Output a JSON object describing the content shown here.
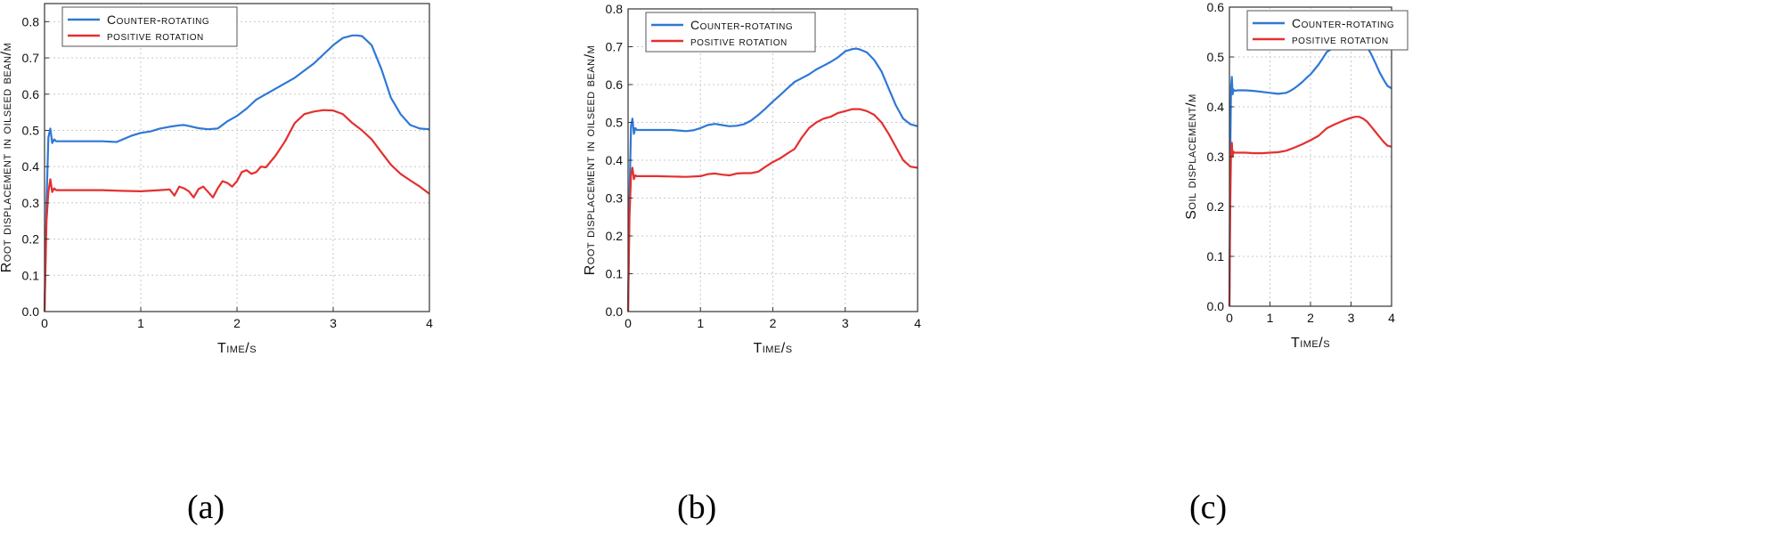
{
  "colors": {
    "counter": "#2f78d6",
    "positive": "#e3302f",
    "grid": "#c8c8c8",
    "axis": "#333333"
  },
  "chart_data": [
    {
      "id": "a",
      "type": "line",
      "caption": "(a)",
      "xlabel": "Time/s",
      "ylabel": "Root displacement in oilseed bean/m",
      "xlim": [
        0,
        4
      ],
      "ylim": [
        0,
        0.85
      ],
      "xticks": [
        "0",
        "1",
        "2",
        "3",
        "4"
      ],
      "yticks": [
        "0.0",
        "0.1",
        "0.2",
        "0.3",
        "0.4",
        "0.5",
        "0.6",
        "0.7",
        "0.8"
      ],
      "grid": true,
      "legend": "top-left",
      "series": [
        {
          "name": "Counter-rotating",
          "x": [
            0,
            0.02,
            0.04,
            0.06,
            0.08,
            0.1,
            0.12,
            0.2,
            0.4,
            0.6,
            0.75,
            0.9,
            1.0,
            1.1,
            1.2,
            1.3,
            1.4,
            1.45,
            1.5,
            1.6,
            1.7,
            1.8,
            1.9,
            2.0,
            2.1,
            2.2,
            2.3,
            2.4,
            2.5,
            2.6,
            2.7,
            2.8,
            2.9,
            3.0,
            3.1,
            3.2,
            3.25,
            3.3,
            3.4,
            3.5,
            3.6,
            3.7,
            3.8,
            3.9,
            4.0
          ],
          "values": [
            0,
            0.3,
            0.48,
            0.505,
            0.465,
            0.475,
            0.47,
            0.47,
            0.47,
            0.47,
            0.468,
            0.485,
            0.493,
            0.497,
            0.505,
            0.51,
            0.514,
            0.515,
            0.512,
            0.506,
            0.503,
            0.505,
            0.525,
            0.54,
            0.56,
            0.585,
            0.6,
            0.615,
            0.63,
            0.645,
            0.665,
            0.685,
            0.71,
            0.735,
            0.755,
            0.762,
            0.762,
            0.76,
            0.735,
            0.67,
            0.59,
            0.545,
            0.515,
            0.505,
            0.503
          ]
        },
        {
          "name": "positive rotation",
          "x": [
            0,
            0.02,
            0.04,
            0.06,
            0.08,
            0.1,
            0.12,
            0.2,
            0.4,
            0.6,
            0.8,
            1.0,
            1.2,
            1.3,
            1.35,
            1.4,
            1.45,
            1.5,
            1.55,
            1.6,
            1.65,
            1.7,
            1.75,
            1.8,
            1.85,
            1.9,
            1.95,
            2.0,
            2.05,
            2.1,
            2.15,
            2.2,
            2.25,
            2.3,
            2.4,
            2.5,
            2.6,
            2.7,
            2.8,
            2.9,
            3.0,
            3.1,
            3.2,
            3.3,
            3.4,
            3.5,
            3.6,
            3.7,
            3.8,
            3.9,
            4.0
          ],
          "values": [
            0,
            0.25,
            0.33,
            0.365,
            0.33,
            0.34,
            0.335,
            0.335,
            0.335,
            0.335,
            0.333,
            0.332,
            0.335,
            0.337,
            0.32,
            0.345,
            0.34,
            0.332,
            0.315,
            0.338,
            0.345,
            0.33,
            0.315,
            0.34,
            0.36,
            0.355,
            0.345,
            0.36,
            0.385,
            0.39,
            0.38,
            0.385,
            0.4,
            0.398,
            0.43,
            0.47,
            0.52,
            0.545,
            0.552,
            0.556,
            0.555,
            0.545,
            0.52,
            0.5,
            0.475,
            0.44,
            0.405,
            0.38,
            0.362,
            0.345,
            0.325
          ]
        }
      ]
    },
    {
      "id": "b",
      "type": "line",
      "caption": "(b)",
      "xlabel": "Time/s",
      "ylabel": "Root displacement in oilseed bean/m",
      "xlim": [
        0,
        4
      ],
      "ylim": [
        0,
        0.8
      ],
      "xticks": [
        "0",
        "1",
        "2",
        "3",
        "4"
      ],
      "yticks": [
        "0.0",
        "0.1",
        "0.2",
        "0.3",
        "0.4",
        "0.5",
        "0.6",
        "0.7",
        "0.8"
      ],
      "grid": true,
      "legend": "top-left",
      "series": [
        {
          "name": "Counter-rotating",
          "x": [
            0,
            0.02,
            0.04,
            0.06,
            0.08,
            0.1,
            0.12,
            0.2,
            0.4,
            0.6,
            0.8,
            0.9,
            1.0,
            1.1,
            1.2,
            1.3,
            1.4,
            1.5,
            1.6,
            1.7,
            1.8,
            1.9,
            2.0,
            2.1,
            2.2,
            2.3,
            2.4,
            2.5,
            2.6,
            2.7,
            2.8,
            2.9,
            3.0,
            3.1,
            3.15,
            3.2,
            3.3,
            3.4,
            3.5,
            3.6,
            3.7,
            3.8,
            3.9,
            4.0
          ],
          "values": [
            0,
            0.3,
            0.49,
            0.51,
            0.47,
            0.485,
            0.48,
            0.48,
            0.48,
            0.48,
            0.477,
            0.479,
            0.485,
            0.493,
            0.496,
            0.493,
            0.49,
            0.491,
            0.495,
            0.505,
            0.52,
            0.537,
            0.555,
            0.572,
            0.59,
            0.607,
            0.617,
            0.627,
            0.64,
            0.65,
            0.66,
            0.672,
            0.688,
            0.694,
            0.695,
            0.693,
            0.685,
            0.665,
            0.635,
            0.59,
            0.545,
            0.51,
            0.495,
            0.49
          ]
        },
        {
          "name": "positive rotation",
          "x": [
            0,
            0.02,
            0.04,
            0.06,
            0.08,
            0.1,
            0.12,
            0.2,
            0.4,
            0.6,
            0.8,
            1.0,
            1.1,
            1.2,
            1.3,
            1.4,
            1.5,
            1.6,
            1.7,
            1.8,
            1.9,
            2.0,
            2.1,
            2.2,
            2.3,
            2.4,
            2.5,
            2.6,
            2.7,
            2.8,
            2.9,
            3.0,
            3.1,
            3.2,
            3.3,
            3.4,
            3.5,
            3.6,
            3.7,
            3.8,
            3.9,
            4.0
          ],
          "values": [
            0,
            0.25,
            0.36,
            0.38,
            0.35,
            0.36,
            0.358,
            0.358,
            0.358,
            0.357,
            0.356,
            0.358,
            0.363,
            0.365,
            0.362,
            0.36,
            0.365,
            0.366,
            0.366,
            0.37,
            0.383,
            0.395,
            0.405,
            0.418,
            0.43,
            0.46,
            0.485,
            0.5,
            0.51,
            0.515,
            0.525,
            0.53,
            0.535,
            0.535,
            0.53,
            0.52,
            0.5,
            0.47,
            0.435,
            0.4,
            0.383,
            0.38
          ]
        }
      ]
    },
    {
      "id": "c",
      "type": "line",
      "caption": "(c)",
      "xlabel": "Time/s",
      "ylabel": "Soil displacement/m",
      "xlim": [
        0,
        4
      ],
      "ylim": [
        0,
        0.6
      ],
      "xticks": [
        "0",
        "1",
        "2",
        "3",
        "4"
      ],
      "yticks": [
        "0.0",
        "0.1",
        "0.2",
        "0.3",
        "0.4",
        "0.5",
        "0.6"
      ],
      "grid": true,
      "legend": "top-left",
      "series": [
        {
          "name": "Counter-rotating",
          "x": [
            0,
            0.02,
            0.04,
            0.06,
            0.08,
            0.1,
            0.12,
            0.2,
            0.4,
            0.6,
            0.8,
            1.0,
            1.2,
            1.4,
            1.5,
            1.6,
            1.7,
            1.8,
            1.9,
            2.0,
            2.1,
            2.2,
            2.3,
            2.4,
            2.5,
            2.6,
            2.7,
            2.8,
            2.9,
            3.0,
            3.1,
            3.2,
            3.3,
            3.4,
            3.5,
            3.6,
            3.7,
            3.8,
            3.9,
            4.0
          ],
          "values": [
            0,
            0.3,
            0.44,
            0.46,
            0.425,
            0.435,
            0.432,
            0.433,
            0.433,
            0.432,
            0.43,
            0.428,
            0.426,
            0.428,
            0.432,
            0.437,
            0.443,
            0.45,
            0.458,
            0.465,
            0.475,
            0.485,
            0.497,
            0.51,
            0.515,
            0.522,
            0.528,
            0.533,
            0.538,
            0.542,
            0.544,
            0.542,
            0.535,
            0.52,
            0.505,
            0.488,
            0.47,
            0.455,
            0.442,
            0.437
          ]
        },
        {
          "name": "positive rotation",
          "x": [
            0,
            0.02,
            0.04,
            0.06,
            0.08,
            0.1,
            0.12,
            0.2,
            0.4,
            0.6,
            0.8,
            1.0,
            1.2,
            1.4,
            1.6,
            1.8,
            2.0,
            2.2,
            2.4,
            2.6,
            2.8,
            3.0,
            3.1,
            3.2,
            3.3,
            3.4,
            3.5,
            3.6,
            3.7,
            3.8,
            3.9,
            4.0
          ],
          "values": [
            0,
            0.2,
            0.31,
            0.328,
            0.3,
            0.31,
            0.308,
            0.308,
            0.308,
            0.307,
            0.307,
            0.308,
            0.309,
            0.312,
            0.318,
            0.325,
            0.333,
            0.342,
            0.357,
            0.365,
            0.372,
            0.378,
            0.38,
            0.38,
            0.376,
            0.37,
            0.36,
            0.35,
            0.34,
            0.33,
            0.322,
            0.32
          ]
        }
      ]
    }
  ]
}
